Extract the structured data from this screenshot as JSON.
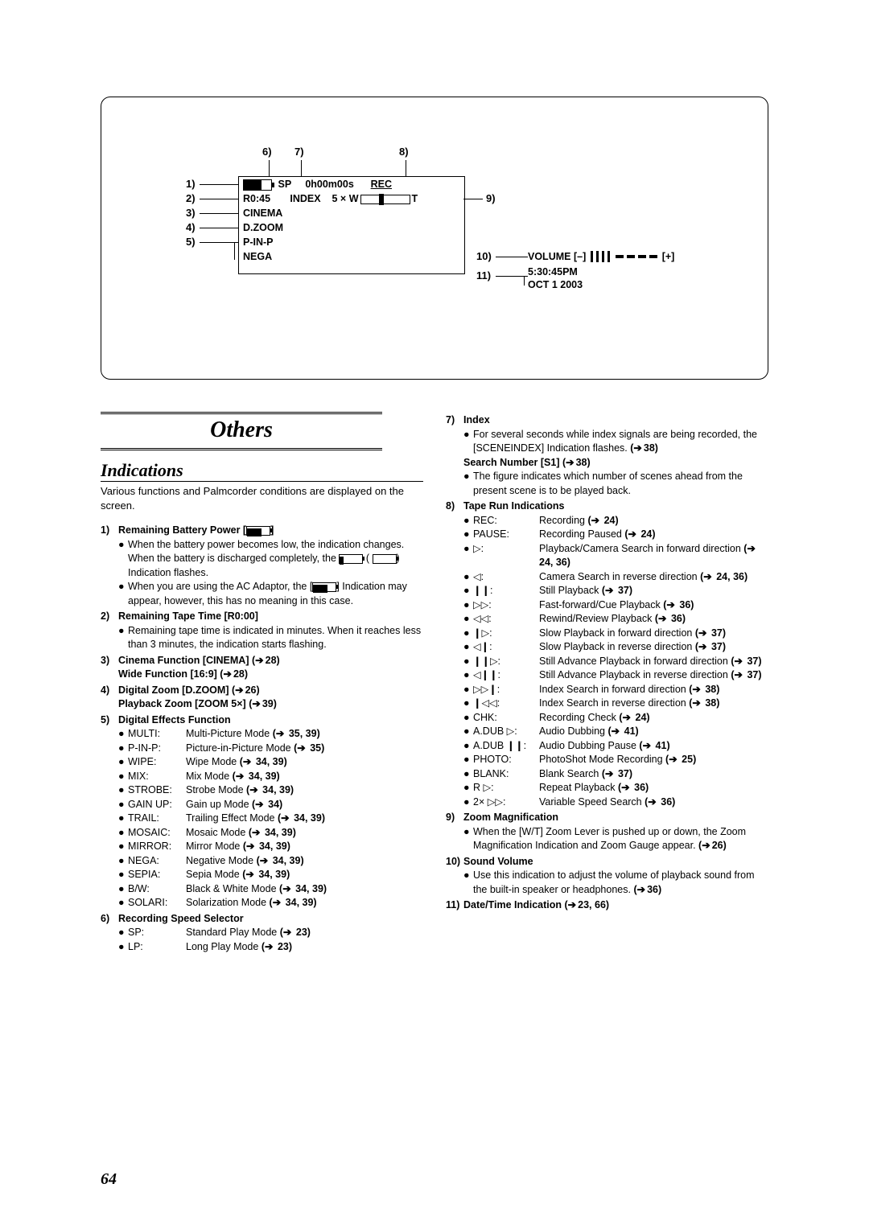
{
  "page_number": "64",
  "others_title": "Others",
  "indications_title": "Indications",
  "intro": "Various functions and Palmcorder conditions are displayed on the screen.",
  "diagram": {
    "lcd": {
      "sp": "SP",
      "time": "0h00m00s",
      "rec": "REC",
      "r045": "R0:45",
      "index": "INDEX",
      "zoom": "5 ×",
      "w": "W",
      "t": "T",
      "cinema": "CINEMA",
      "dzoom": "D.ZOOM",
      "pinp": "P-IN-P",
      "nega": "NEGA"
    },
    "vol": {
      "volume": "VOLUME",
      "minus": "[–]",
      "plus": "[+]",
      "time": "5:30:45PM",
      "date": "OCT 1 2003"
    },
    "labels": {
      "l1": "1)",
      "l2": "2)",
      "l3": "3)",
      "l4": "4)",
      "l5": "5)",
      "l6": "6)",
      "l7": "7)",
      "l8": "8)",
      "l9": "9)",
      "l10": "10)",
      "l11": "11)"
    }
  },
  "left": {
    "i1": {
      "n": "1)",
      "title": "Remaining Battery Power [",
      "title2": "]",
      "b1a": "When the battery power becomes low, the indication changes. When the battery is discharged completely, the ",
      "b1b": " ( ",
      "b1c": ") Indication flashes.",
      "b2a": "When you are using the AC Adaptor, the [",
      "b2b": "] Indication may appear, however, this has no meaning in this case."
    },
    "i2": {
      "n": "2)",
      "title": "Remaining Tape Time [R0:00]",
      "b1": "Remaining tape time is indicated in minutes. When it reaches less than 3 minutes, the indication starts flashing."
    },
    "i3": {
      "n": "3)",
      "t1": "Cinema Function [CINEMA] (",
      "r1": "28)",
      "t2": "Wide Function [16:9] (",
      "r2": "28)"
    },
    "i4": {
      "n": "4)",
      "t1": "Digital Zoom [D.ZOOM] (",
      "r1": "26)",
      "t2": "Playback Zoom [ZOOM 5×] (",
      "r2": "39)"
    },
    "i5": {
      "n": "5)",
      "title": "Digital Effects Function",
      "rows": [
        {
          "k": "MULTI:",
          "v": "Multi-Picture Mode ",
          "r": "35, 39)"
        },
        {
          "k": "P-IN-P:",
          "v": "Picture-in-Picture Mode ",
          "r": "35)"
        },
        {
          "k": "WIPE:",
          "v": "Wipe Mode ",
          "r": "34, 39)"
        },
        {
          "k": "MIX:",
          "v": "Mix Mode ",
          "r": "34, 39)"
        },
        {
          "k": "STROBE:",
          "v": "Strobe Mode ",
          "r": "34, 39)"
        },
        {
          "k": "GAIN UP:",
          "v": "Gain up Mode ",
          "r": "34)"
        },
        {
          "k": "TRAIL:",
          "v": "Trailing Effect Mode ",
          "r": "34, 39)"
        },
        {
          "k": "MOSAIC:",
          "v": "Mosaic Mode ",
          "r": "34, 39)"
        },
        {
          "k": "MIRROR:",
          "v": "Mirror Mode ",
          "r": "34, 39)"
        },
        {
          "k": "NEGA:",
          "v": "Negative Mode ",
          "r": "34, 39)"
        },
        {
          "k": "SEPIA:",
          "v": "Sepia Mode ",
          "r": "34, 39)"
        },
        {
          "k": "B/W:",
          "v": "Black & White Mode ",
          "r": "34, 39)"
        },
        {
          "k": "SOLARI:",
          "v": "Solarization Mode ",
          "r": "34, 39)"
        }
      ]
    },
    "i6": {
      "n": "6)",
      "title": "Recording Speed Selector",
      "rows": [
        {
          "k": "SP:",
          "v": "Standard Play Mode ",
          "r": "23)"
        },
        {
          "k": "LP:",
          "v": "Long Play Mode ",
          "r": "23)"
        }
      ]
    }
  },
  "right": {
    "i7": {
      "n": "7)",
      "title": "Index",
      "b1a": "For several seconds while index signals are being recorded, the [SCENEINDEX] Indication flashes. ",
      "b1r": "38)",
      "s1t": "Search Number [S1] (",
      "s1r": "38)",
      "b2": "The figure indicates which number of scenes ahead from the present scene is to be played back."
    },
    "i8": {
      "n": "8)",
      "title": "Tape Run Indications",
      "rows": [
        {
          "k": "REC:",
          "v": "Recording ",
          "r": "24)"
        },
        {
          "k": "PAUSE:",
          "v": "Recording Paused ",
          "r": "24)"
        },
        {
          "k": "▷:",
          "v": "Playback/Camera Search in forward direction ",
          "r": "24, 36)"
        },
        {
          "k": "◁:",
          "v": "Camera Search in reverse direction ",
          "r": "24, 36)"
        },
        {
          "k": "❙❙:",
          "v": "Still Playback ",
          "r": "37)"
        },
        {
          "k": "▷▷:",
          "v": "Fast-forward/Cue Playback ",
          "r": "36)"
        },
        {
          "k": "◁◁:",
          "v": "Rewind/Review Playback ",
          "r": "36)"
        },
        {
          "k": "❙▷:",
          "v": "Slow Playback in forward direction ",
          "r": "37)"
        },
        {
          "k": "◁❙:",
          "v": "Slow Playback in reverse direction ",
          "r": "37)"
        },
        {
          "k": "❙❙▷:",
          "v": "Still Advance Playback in forward direction ",
          "r": "37)"
        },
        {
          "k": "◁❙❙:",
          "v": "Still Advance Playback in reverse direction ",
          "r": "37)"
        },
        {
          "k": "▷▷❙:",
          "v": "Index Search in forward direction ",
          "r": "38)"
        },
        {
          "k": "❙◁◁:",
          "v": "Index Search in reverse direction ",
          "r": "38)"
        },
        {
          "k": "CHK:",
          "v": "Recording Check ",
          "r": "24)"
        },
        {
          "k": "A.DUB ▷:",
          "v": "Audio Dubbing ",
          "r": "41)"
        },
        {
          "k": "A.DUB ❙❙:",
          "v": "Audio Dubbing Pause ",
          "r": "41)"
        },
        {
          "k": "PHOTO:",
          "v": "PhotoShot Mode Recording ",
          "r": "25)"
        },
        {
          "k": "BLANK:",
          "v": "Blank Search ",
          "r": "37)"
        },
        {
          "k": "R ▷:",
          "v": "Repeat Playback ",
          "r": "36)"
        },
        {
          "k": "2× ▷▷:",
          "v": "Variable Speed Search ",
          "r": "36)"
        }
      ]
    },
    "i9": {
      "n": "9)",
      "title": "Zoom Magnification",
      "b1a": "When the [W/T] Zoom Lever is pushed up or down, the Zoom Magnification Indication and Zoom Gauge appear. ",
      "b1r": "26)"
    },
    "i10": {
      "n": "10)",
      "title": "Sound Volume",
      "b1a": "Use this indication to adjust the volume of playback sound from the built-in speaker or headphones. ",
      "b1r": "36)"
    },
    "i11": {
      "n": "11)",
      "t1": "Date/Time Indication (",
      "r1": "23, 66)"
    }
  }
}
